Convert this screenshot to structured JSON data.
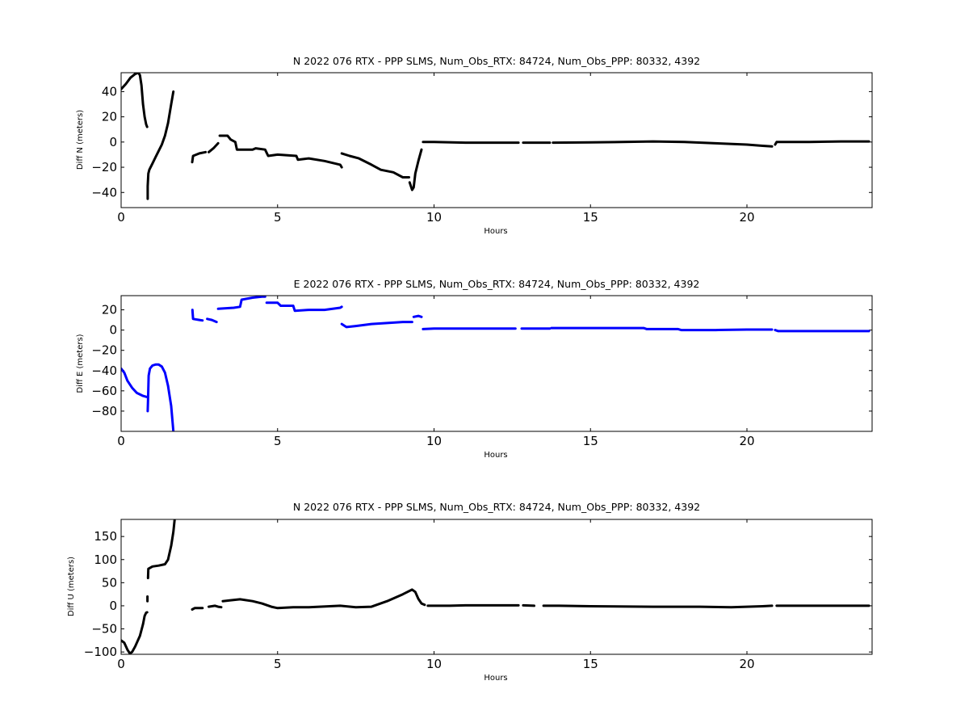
{
  "chart_data": [
    {
      "type": "scatter",
      "title": "N 2022 076 RTX - PPP  SLMS, Num_Obs_RTX: 84724, Num_Obs_PPP: 80332, 4392",
      "xlabel": "Hours",
      "ylabel": "Diff N (meters)",
      "xlim": [
        0,
        24
      ],
      "ylim": [
        -52,
        55
      ],
      "xticks": [
        "0",
        "5",
        "10",
        "15",
        "20"
      ],
      "yticks": [
        "40",
        "20",
        "0",
        "−20",
        "−40"
      ],
      "xtick_values": [
        0,
        5,
        10,
        15,
        20
      ],
      "ytick_values": [
        40,
        20,
        0,
        -20,
        -40
      ],
      "color": "#000000",
      "grid": false,
      "segments": [
        [
          [
            0.0,
            42
          ],
          [
            0.15,
            46
          ],
          [
            0.3,
            51
          ],
          [
            0.45,
            54
          ],
          [
            0.55,
            55
          ],
          [
            0.6,
            53
          ],
          [
            0.65,
            45
          ],
          [
            0.7,
            30
          ],
          [
            0.75,
            20
          ],
          [
            0.8,
            14
          ],
          [
            0.83,
            12
          ]
        ],
        [
          [
            0.85,
            -45
          ],
          [
            0.85,
            -35
          ],
          [
            0.87,
            -25
          ],
          [
            0.9,
            -22
          ],
          [
            1.0,
            -17
          ],
          [
            1.1,
            -12
          ],
          [
            1.2,
            -7
          ],
          [
            1.3,
            -2
          ],
          [
            1.4,
            5
          ],
          [
            1.5,
            15
          ],
          [
            1.6,
            30
          ],
          [
            1.67,
            40
          ]
        ],
        [
          [
            2.27,
            -16
          ],
          [
            2.3,
            -11
          ],
          [
            2.5,
            -9
          ],
          [
            2.7,
            -8
          ]
        ],
        [
          [
            2.8,
            -8
          ],
          [
            2.95,
            -5
          ],
          [
            3.1,
            -1
          ]
        ],
        [
          [
            3.15,
            5
          ],
          [
            3.4,
            5
          ],
          [
            3.5,
            2
          ],
          [
            3.65,
            0
          ],
          [
            3.7,
            -6
          ],
          [
            4.2,
            -6
          ],
          [
            4.3,
            -5
          ],
          [
            4.6,
            -6
          ],
          [
            4.7,
            -11
          ],
          [
            5.0,
            -10
          ],
          [
            5.6,
            -11
          ],
          [
            5.65,
            -14
          ],
          [
            6.0,
            -13
          ],
          [
            6.5,
            -15
          ],
          [
            7.0,
            -18
          ],
          [
            7.05,
            -20
          ]
        ],
        [
          [
            7.05,
            -9
          ],
          [
            7.3,
            -11
          ],
          [
            7.6,
            -13
          ],
          [
            8.0,
            -18
          ],
          [
            8.3,
            -22
          ],
          [
            8.7,
            -24
          ],
          [
            9.0,
            -28
          ],
          [
            9.2,
            -28
          ]
        ],
        [
          [
            9.22,
            -32
          ],
          [
            9.3,
            -38
          ],
          [
            9.35,
            -36
          ],
          [
            9.4,
            -25
          ],
          [
            9.5,
            -15
          ],
          [
            9.6,
            -6
          ]
        ],
        [
          [
            9.65,
            0
          ],
          [
            10.0,
            0
          ],
          [
            11.0,
            -0.5
          ],
          [
            12.0,
            -0.5
          ],
          [
            12.7,
            -0.5
          ]
        ],
        [
          [
            12.85,
            -0.5
          ],
          [
            13.7,
            -0.5
          ]
        ],
        [
          [
            13.8,
            -0.5
          ],
          [
            15.0,
            -0.3
          ],
          [
            16.0,
            0
          ],
          [
            17.0,
            0.5
          ],
          [
            18.0,
            0
          ],
          [
            19.0,
            -1
          ],
          [
            20.0,
            -2
          ],
          [
            20.5,
            -3
          ],
          [
            20.8,
            -3.5
          ]
        ],
        [
          [
            20.9,
            -2
          ],
          [
            20.95,
            0
          ],
          [
            22.0,
            0
          ],
          [
            23.0,
            0.5
          ],
          [
            23.9,
            0.5
          ]
        ]
      ]
    },
    {
      "type": "scatter",
      "title": "E 2022 076 RTX - PPP  SLMS, Num_Obs_RTX: 84724, Num_Obs_PPP: 80332, 4392",
      "xlabel": "Hours",
      "ylabel": "Diff E (meters)",
      "xlim": [
        0,
        24
      ],
      "ylim": [
        -100,
        34
      ],
      "xticks": [
        "0",
        "5",
        "10",
        "15",
        "20"
      ],
      "yticks": [
        "20",
        "0",
        "−20",
        "−40",
        "−60",
        "−80"
      ],
      "xtick_values": [
        0,
        5,
        10,
        15,
        20
      ],
      "ytick_values": [
        20,
        0,
        -20,
        -40,
        -60,
        -80
      ],
      "color": "#0000ff",
      "grid": false,
      "segments": [
        [
          [
            0.0,
            -38
          ],
          [
            0.1,
            -42
          ],
          [
            0.2,
            -50
          ],
          [
            0.35,
            -57
          ],
          [
            0.5,
            -62
          ],
          [
            0.7,
            -65
          ],
          [
            0.82,
            -66
          ]
        ],
        [
          [
            0.85,
            -80
          ],
          [
            0.86,
            -70
          ],
          [
            0.88,
            -45
          ],
          [
            0.92,
            -38
          ],
          [
            1.0,
            -35
          ],
          [
            1.1,
            -34
          ],
          [
            1.2,
            -34
          ],
          [
            1.3,
            -36
          ],
          [
            1.4,
            -42
          ],
          [
            1.5,
            -55
          ],
          [
            1.6,
            -75
          ],
          [
            1.67,
            -100
          ]
        ],
        [
          [
            2.28,
            20
          ],
          [
            2.3,
            11
          ],
          [
            2.5,
            10
          ],
          [
            2.6,
            9.5
          ]
        ],
        [
          [
            2.75,
            11
          ],
          [
            2.9,
            10
          ],
          [
            3.05,
            8
          ]
        ],
        [
          [
            3.1,
            21
          ],
          [
            3.6,
            22
          ],
          [
            3.8,
            23
          ],
          [
            3.85,
            30
          ],
          [
            4.2,
            32
          ],
          [
            4.5,
            33
          ],
          [
            4.6,
            33
          ]
        ],
        [
          [
            4.65,
            27
          ],
          [
            5.0,
            27
          ],
          [
            5.1,
            24
          ],
          [
            5.5,
            24
          ],
          [
            5.55,
            19
          ],
          [
            6.0,
            20
          ],
          [
            6.5,
            20
          ],
          [
            7.0,
            22
          ],
          [
            7.05,
            23
          ]
        ],
        [
          [
            7.05,
            6
          ],
          [
            7.2,
            3
          ],
          [
            7.5,
            4
          ],
          [
            8.0,
            6
          ],
          [
            8.5,
            7
          ],
          [
            9.0,
            8
          ],
          [
            9.3,
            8
          ]
        ],
        [
          [
            9.35,
            13
          ],
          [
            9.5,
            14
          ],
          [
            9.6,
            13
          ]
        ],
        [
          [
            9.65,
            1
          ],
          [
            10.0,
            1.5
          ],
          [
            11.0,
            1.5
          ],
          [
            12.0,
            1.5
          ],
          [
            12.6,
            1.5
          ]
        ],
        [
          [
            12.8,
            1.5
          ],
          [
            13.7,
            1.5
          ]
        ],
        [
          [
            13.75,
            2
          ],
          [
            14.0,
            2
          ],
          [
            15.0,
            2
          ],
          [
            16.7,
            2
          ],
          [
            16.8,
            1
          ],
          [
            17.8,
            1
          ],
          [
            17.9,
            0
          ],
          [
            19.0,
            0
          ],
          [
            20.0,
            0.5
          ],
          [
            20.8,
            0.5
          ]
        ],
        [
          [
            20.9,
            0
          ],
          [
            21.0,
            -1
          ],
          [
            22.0,
            -1
          ],
          [
            23.0,
            -1
          ],
          [
            23.9,
            -1
          ]
        ]
      ]
    },
    {
      "type": "scatter",
      "title": "N 2022 076 RTX - PPP  SLMS, Num_Obs_RTX: 84724, Num_Obs_PPP: 80332, 4392",
      "xlabel": "Hours",
      "ylabel": "Diff U (meters)",
      "xlim": [
        0,
        24
      ],
      "ylim": [
        -105,
        187
      ],
      "xticks": [
        "0",
        "5",
        "10",
        "15",
        "20"
      ],
      "yticks": [
        "150",
        "100",
        "50",
        "0",
        "−50",
        "−100"
      ],
      "xtick_values": [
        0,
        5,
        10,
        15,
        20
      ],
      "ytick_values": [
        150,
        100,
        50,
        0,
        -50,
        -100
      ],
      "color": "#000000",
      "grid": false,
      "segments": [
        [
          [
            0.0,
            -75
          ],
          [
            0.1,
            -80
          ],
          [
            0.2,
            -95
          ],
          [
            0.28,
            -103
          ],
          [
            0.35,
            -100
          ],
          [
            0.45,
            -88
          ],
          [
            0.6,
            -65
          ],
          [
            0.7,
            -40
          ],
          [
            0.75,
            -22
          ],
          [
            0.8,
            -15
          ],
          [
            0.83,
            -14
          ]
        ],
        [
          [
            0.84,
            10
          ],
          [
            0.84,
            20
          ]
        ],
        [
          [
            0.86,
            60
          ],
          [
            0.87,
            80
          ],
          [
            1.0,
            85
          ],
          [
            1.2,
            87
          ],
          [
            1.4,
            90
          ],
          [
            1.5,
            100
          ],
          [
            1.6,
            130
          ],
          [
            1.67,
            160
          ],
          [
            1.71,
            187
          ]
        ],
        [
          [
            2.27,
            -8
          ],
          [
            2.35,
            -5
          ],
          [
            2.6,
            -5
          ]
        ],
        [
          [
            2.8,
            -2
          ],
          [
            3.0,
            0
          ],
          [
            3.1,
            -2
          ],
          [
            3.2,
            -3
          ]
        ],
        [
          [
            3.25,
            10
          ],
          [
            3.5,
            12
          ],
          [
            3.8,
            14
          ],
          [
            4.2,
            10
          ],
          [
            4.5,
            5
          ],
          [
            4.8,
            -2
          ],
          [
            5.0,
            -5
          ],
          [
            5.5,
            -3
          ],
          [
            6.0,
            -3
          ],
          [
            7.0,
            0
          ],
          [
            7.5,
            -3
          ],
          [
            8.0,
            -2
          ],
          [
            8.5,
            10
          ],
          [
            9.0,
            25
          ],
          [
            9.3,
            35
          ],
          [
            9.4,
            30
          ],
          [
            9.5,
            15
          ],
          [
            9.6,
            5
          ],
          [
            9.7,
            2
          ]
        ],
        [
          [
            9.8,
            0
          ],
          [
            10.5,
            0
          ],
          [
            11.0,
            1
          ],
          [
            12.0,
            1
          ],
          [
            12.7,
            1
          ]
        ],
        [
          [
            12.85,
            1
          ],
          [
            13.2,
            0
          ]
        ],
        [
          [
            13.5,
            0
          ],
          [
            14.0,
            0
          ],
          [
            15.0,
            -1
          ],
          [
            17.0,
            -2
          ],
          [
            18.5,
            -2
          ],
          [
            19.5,
            -3
          ],
          [
            20.5,
            -1
          ],
          [
            20.8,
            0
          ]
        ],
        [
          [
            20.95,
            0
          ],
          [
            22.0,
            0
          ],
          [
            23.0,
            0
          ],
          [
            23.9,
            0
          ]
        ]
      ]
    }
  ]
}
